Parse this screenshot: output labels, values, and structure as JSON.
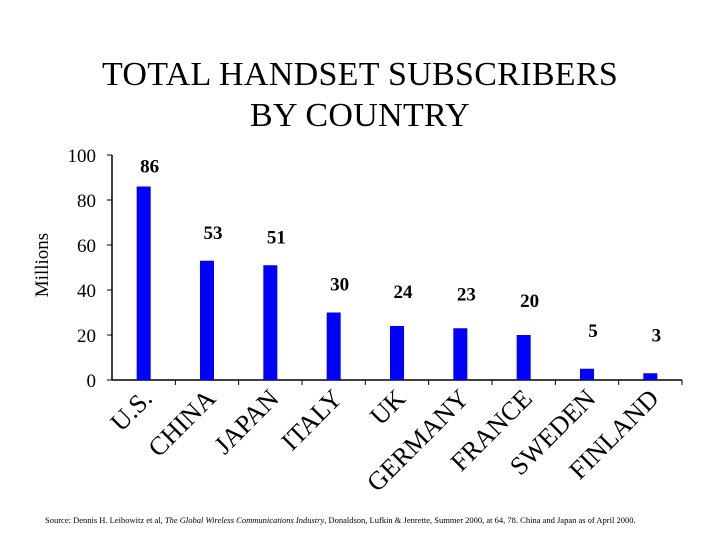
{
  "chart_data": {
    "type": "bar",
    "title_lines": [
      "TOTAL HANDSET SUBSCRIBERS",
      "BY COUNTRY"
    ],
    "ylabel": "Millions",
    "ylim": [
      0,
      100
    ],
    "yticks": [
      "0",
      "20",
      "40",
      "60",
      "80",
      "100"
    ],
    "ytick_values": [
      0,
      20,
      40,
      60,
      80,
      100
    ],
    "categories": [
      "U.S.",
      "CHINA",
      "JAPAN",
      "ITALY",
      "UK",
      "GERMANY",
      "FRANCE",
      "SWEDEN",
      "FINLAND"
    ],
    "values": [
      86,
      53,
      51,
      30,
      24,
      23,
      20,
      5,
      3
    ],
    "data_labels": [
      "86",
      "53",
      "51",
      "30",
      "24",
      "23",
      "20",
      "5",
      "3"
    ],
    "bar_color": "#0000ff",
    "grid": false,
    "legend": "none"
  },
  "source": {
    "prefix": "Source: Dennis H. Leibowitz et al, ",
    "publication": "The Global Wireless Communications Industry",
    "suffix": ", Donaldson, Lufkin & Jenrette, Summer 2000, at 64, 78.  China and Japan as of April 2000."
  }
}
